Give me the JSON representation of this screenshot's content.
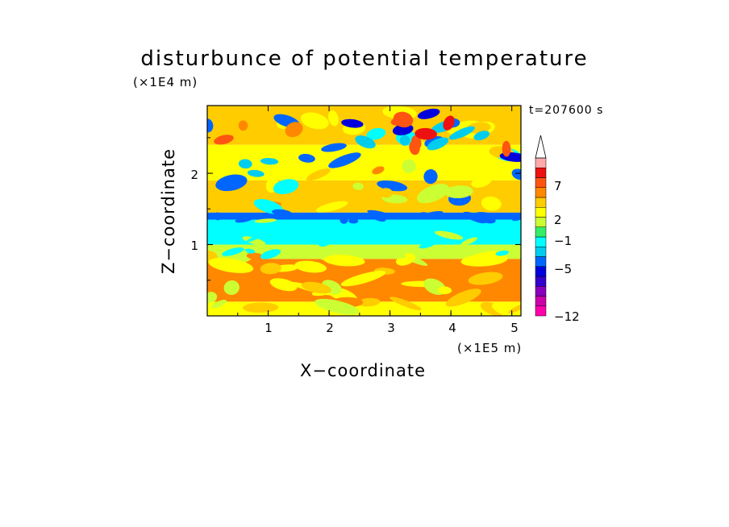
{
  "chart_data": {
    "type": "heatmap",
    "title": "disturbunce of potential temperature",
    "xlabel": "X−coordinate",
    "ylabel": "Z−coordinate",
    "x_unit": "(×1E5 m)",
    "z_unit": "(×1E4 m)",
    "time_label": "t=207600 s",
    "xlim": [
      0,
      5.15
    ],
    "ylim": [
      0,
      2.95
    ],
    "x_ticks": [
      "1",
      "2",
      "3",
      "4",
      "5"
    ],
    "y_ticks": [
      "1",
      "2"
    ],
    "colorbar": {
      "levels": [
        -12,
        -11,
        -9,
        -7,
        -5,
        -4,
        -3,
        -1,
        0,
        1,
        2,
        3,
        5,
        7,
        9,
        11
      ],
      "labels": [
        "7",
        "2",
        "−1",
        "−5",
        "−12"
      ],
      "colors": [
        "#ff00aa",
        "#cc00aa",
        "#8800bb",
        "#3300cc",
        "#0000dd",
        "#0066ff",
        "#00ccee",
        "#00ffff",
        "#33ee66",
        "#ccff33",
        "#ffff00",
        "#ffcc00",
        "#ff8800",
        "#ff5511",
        "#ee1111",
        "#ffaaaa",
        "#ffffff"
      ]
    },
    "bands": [
      {
        "z_range": [
          0.0,
          0.2
        ],
        "value": 1.0
      },
      {
        "z_range": [
          0.2,
          0.8
        ],
        "value": 3.0
      },
      {
        "z_range": [
          0.8,
          1.0
        ],
        "value": 0.5
      },
      {
        "z_range": [
          1.0,
          1.35
        ],
        "value": -1.5
      },
      {
        "z_range": [
          1.35,
          1.45
        ],
        "value": -4.5
      },
      {
        "z_range": [
          1.45,
          1.9
        ],
        "value": 2.5
      },
      {
        "z_range": [
          1.9,
          2.4
        ],
        "value": 1.5
      },
      {
        "z_range": [
          2.4,
          2.95
        ],
        "value": 2.0
      }
    ]
  }
}
